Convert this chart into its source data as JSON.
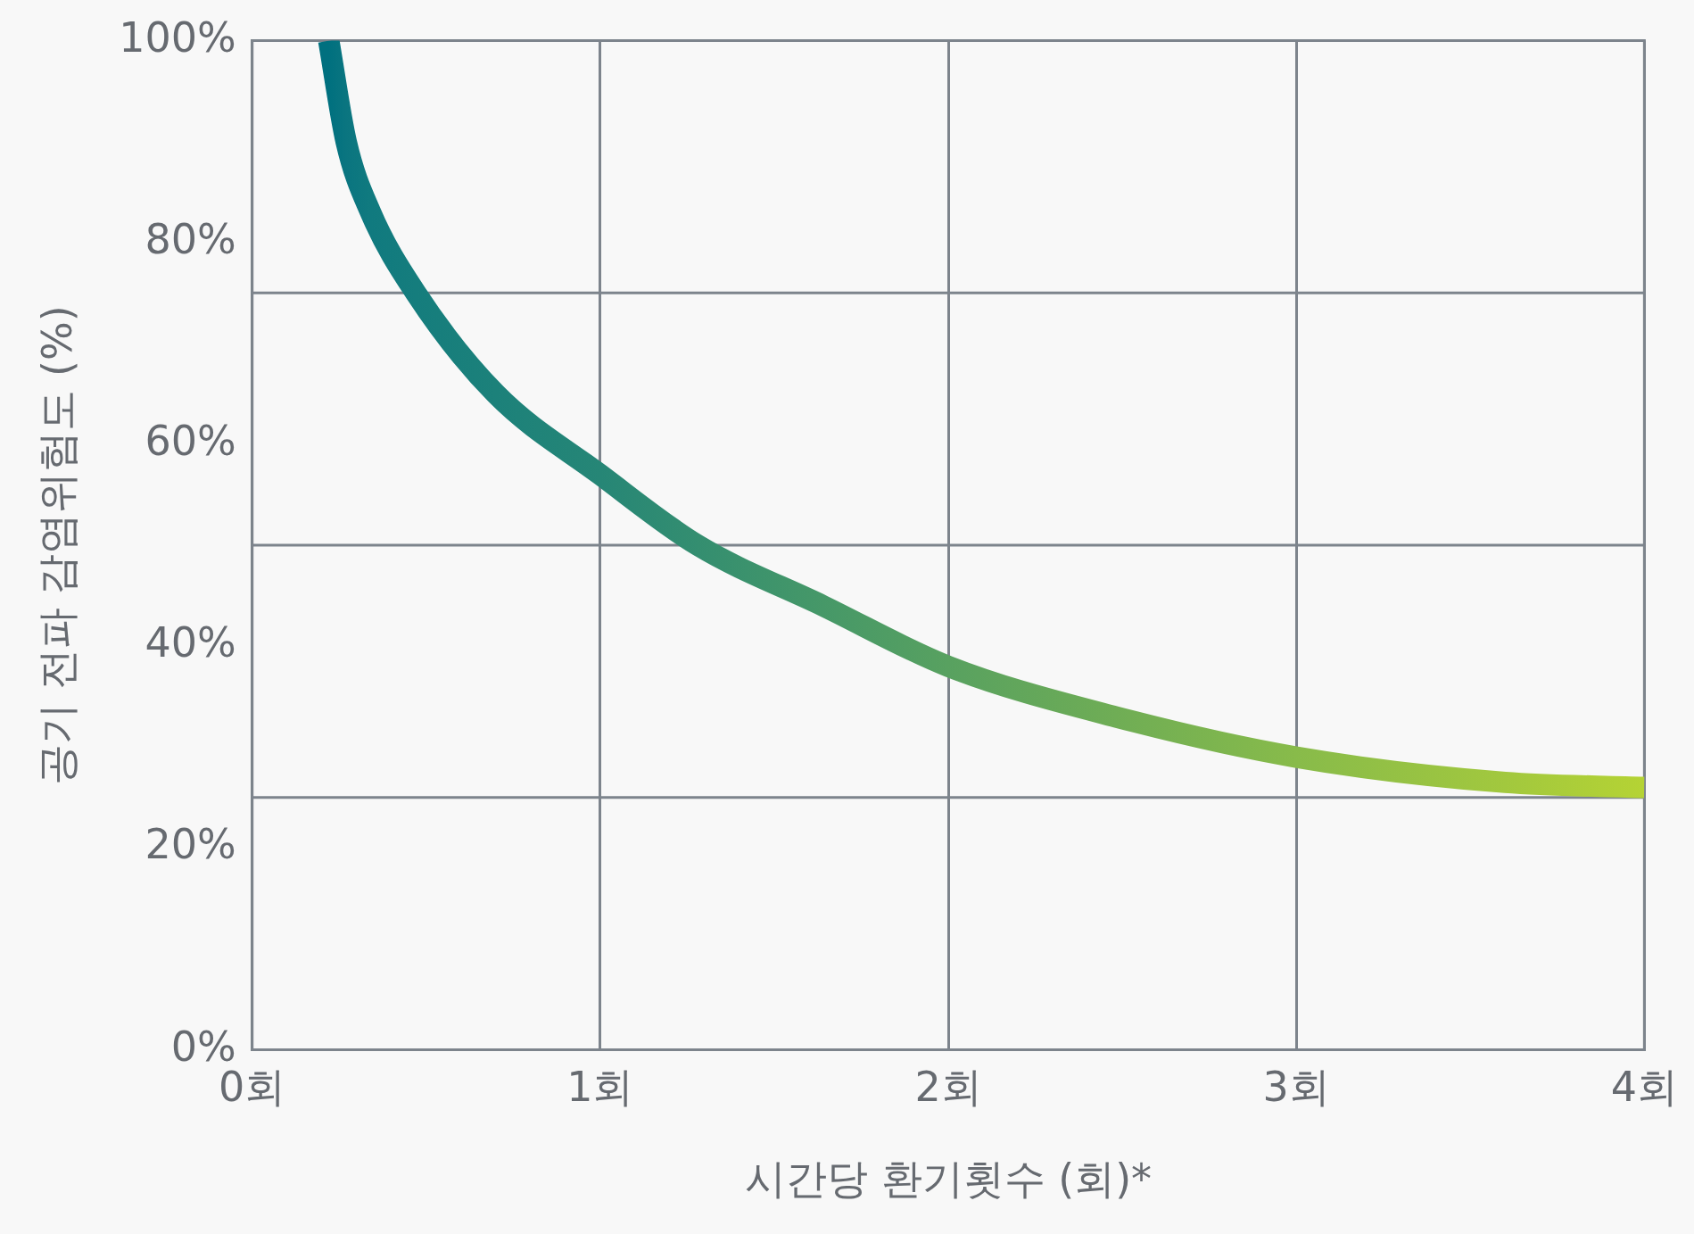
{
  "chart_data": {
    "type": "line",
    "xlabel": "시간당 환기횟수 (회)*",
    "ylabel": "공기 전파 감염위험도 (%)",
    "xlim": [
      0,
      4
    ],
    "xticks": [
      {
        "value": 0,
        "label": "0회"
      },
      {
        "value": 1,
        "label": "1회"
      },
      {
        "value": 2,
        "label": "2회"
      },
      {
        "value": 3,
        "label": "3회"
      },
      {
        "value": 4,
        "label": "4회"
      }
    ],
    "ylim": [
      0,
      100
    ],
    "yticks": [
      {
        "value": 0,
        "label": "0%"
      },
      {
        "value": 20,
        "label": "20%"
      },
      {
        "value": 40,
        "label": "40%"
      },
      {
        "value": 60,
        "label": "60%"
      },
      {
        "value": 80,
        "label": "80%"
      },
      {
        "value": 100,
        "label": "100%"
      }
    ],
    "grid": "x",
    "legend": false,
    "marker": "none",
    "line_style": "solid",
    "ref_lines": [
      {
        "axis": "y",
        "value": 25,
        "color": "#7d848c"
      },
      {
        "axis": "y",
        "value": 50,
        "color": "#7d848c"
      },
      {
        "axis": "y",
        "value": 75,
        "color": "#7d848c"
      }
    ],
    "series": [
      {
        "x": [
          0.22,
          0.27,
          0.34,
          0.47,
          0.7,
          1.0,
          1.28,
          1.64,
          2.0,
          2.48,
          3.0,
          3.6,
          4.0
        ],
        "values": [
          100,
          90,
          83,
          75,
          65,
          57,
          50,
          44,
          38,
          33,
          29,
          26.5,
          26
        ],
        "colors": [
          "#00707f",
          "#0a7580",
          "#107a7f",
          "#157d7d",
          "#1c817a",
          "#268676",
          "#348e70",
          "#469868",
          "#58a160",
          "#6fad55",
          "#88bb4a",
          "#a2c83e",
          "#b5d334"
        ]
      }
    ]
  }
}
